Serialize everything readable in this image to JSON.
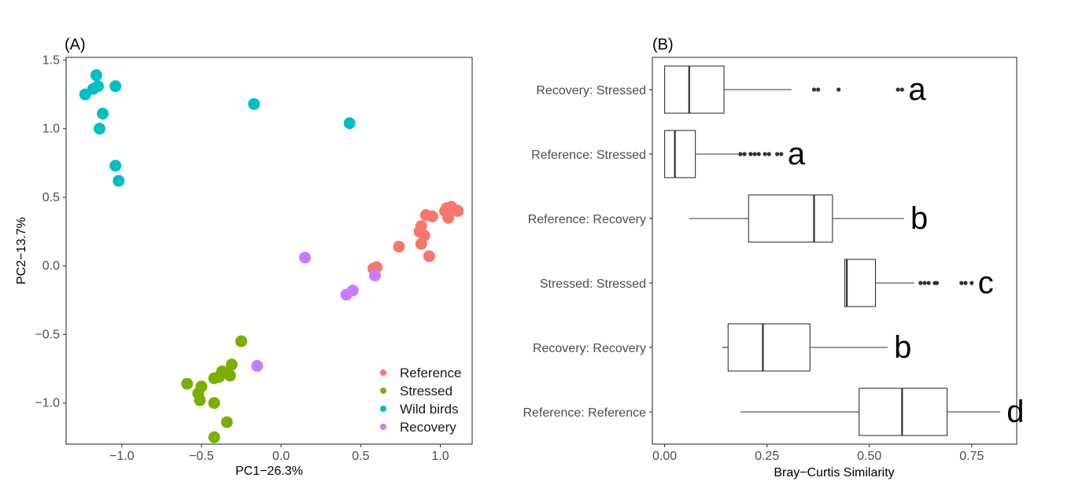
{
  "panelA": {
    "tag": "(A)",
    "xlabel": "PC1−26.3%",
    "ylabel": "PC2−13.7%",
    "xticks": [
      "−1.0",
      "−0.5",
      "0.0",
      "0.5",
      "1.0"
    ],
    "yticks": [
      "−1.0",
      "−0.5",
      "0.0",
      "0.5",
      "1.0",
      "1.5"
    ],
    "legend": [
      {
        "label": "Reference",
        "color": "#f8766d"
      },
      {
        "label": "Stressed",
        "color": "#7cae00"
      },
      {
        "label": "Wild birds",
        "color": "#00bfc4"
      },
      {
        "label": "Recovery",
        "color": "#c77cff"
      }
    ]
  },
  "panelB": {
    "tag": "(B)",
    "xlabel": "Bray−Curtis Similarity",
    "xticks": [
      "0.00",
      "0.25",
      "0.50",
      "0.75"
    ],
    "categories": [
      "Recovery: Stressed",
      "Reference: Stressed",
      "Reference: Recovery",
      "Stressed: Stressed",
      "Recovery: Recovery",
      "Reference: Reference"
    ],
    "letters": [
      "a",
      "a",
      "b",
      "c",
      "b",
      "d"
    ]
  },
  "chart_data": [
    {
      "type": "scatter",
      "xlim": [
        -1.35,
        1.2
      ],
      "ylim": [
        -1.3,
        1.52
      ],
      "grid": false,
      "legend_position": "bottom-right",
      "series": [
        {
          "name": "Reference",
          "color": "#f8766d",
          "points": [
            [
              0.58,
              -0.02
            ],
            [
              0.6,
              -0.01
            ],
            [
              0.74,
              0.14
            ],
            [
              0.88,
              0.16
            ],
            [
              0.9,
              0.22
            ],
            [
              0.87,
              0.25
            ],
            [
              0.88,
              0.29
            ],
            [
              0.93,
              0.07
            ],
            [
              0.91,
              0.37
            ],
            [
              0.95,
              0.36
            ],
            [
              1.03,
              0.4
            ],
            [
              1.04,
              0.42
            ],
            [
              1.07,
              0.43
            ],
            [
              1.11,
              0.4
            ],
            [
              1.05,
              0.35
            ]
          ]
        },
        {
          "name": "Stressed",
          "color": "#7cae00",
          "points": [
            [
              -0.25,
              -0.55
            ],
            [
              -0.31,
              -0.72
            ],
            [
              -0.32,
              -0.8
            ],
            [
              -0.35,
              -0.78
            ],
            [
              -0.37,
              -0.77
            ],
            [
              -0.39,
              -0.81
            ],
            [
              -0.42,
              -0.82
            ],
            [
              -0.59,
              -0.86
            ],
            [
              -0.5,
              -0.88
            ],
            [
              -0.52,
              -0.93
            ],
            [
              -0.51,
              -0.98
            ],
            [
              -0.42,
              -1.0
            ],
            [
              -0.34,
              -1.14
            ],
            [
              -0.42,
              -1.25
            ]
          ]
        },
        {
          "name": "Wild birds",
          "color": "#00bfc4",
          "points": [
            [
              -1.16,
              1.39
            ],
            [
              -1.04,
              1.31
            ],
            [
              -1.15,
              1.31
            ],
            [
              -1.18,
              1.29
            ],
            [
              -1.23,
              1.25
            ],
            [
              -1.12,
              1.11
            ],
            [
              -1.14,
              1.0
            ],
            [
              -1.04,
              0.73
            ],
            [
              -1.02,
              0.62
            ],
            [
              -0.17,
              1.18
            ],
            [
              0.43,
              1.04
            ]
          ]
        },
        {
          "name": "Recovery",
          "color": "#c77cff",
          "points": [
            [
              0.15,
              0.06
            ],
            [
              0.45,
              -0.18
            ],
            [
              0.41,
              -0.21
            ],
            [
              0.59,
              -0.07
            ],
            [
              -0.15,
              -0.73
            ]
          ]
        }
      ]
    },
    {
      "type": "box",
      "orientation": "horizontal",
      "xlim": [
        -0.03,
        0.86
      ],
      "grid": false,
      "categories": [
        "Recovery: Stressed",
        "Reference: Stressed",
        "Reference: Recovery",
        "Stressed: Stressed",
        "Recovery: Recovery",
        "Reference: Reference"
      ],
      "boxes": [
        {
          "whisker_low": 0.0,
          "q1": 0.0,
          "median": 0.06,
          "q3": 0.145,
          "whisker_high": 0.31,
          "outliers": [
            0.365,
            0.375,
            0.425,
            0.57,
            0.58
          ]
        },
        {
          "whisker_low": 0.0,
          "q1": 0.0,
          "median": 0.025,
          "q3": 0.075,
          "whisker_high": 0.18,
          "outliers": [
            0.185,
            0.195,
            0.21,
            0.22,
            0.23,
            0.245,
            0.255,
            0.275,
            0.285
          ]
        },
        {
          "whisker_low": 0.06,
          "q1": 0.205,
          "median": 0.365,
          "q3": 0.41,
          "whisker_high": 0.585,
          "outliers": []
        },
        {
          "whisker_low": 0.44,
          "q1": 0.44,
          "median": 0.445,
          "q3": 0.515,
          "whisker_high": 0.61,
          "outliers": [
            0.625,
            0.635,
            0.645,
            0.66,
            0.665,
            0.725,
            0.735,
            0.75
          ]
        },
        {
          "whisker_low": 0.14,
          "q1": 0.155,
          "median": 0.24,
          "q3": 0.355,
          "whisker_high": 0.545,
          "outliers": []
        },
        {
          "whisker_low": 0.185,
          "q1": 0.475,
          "median": 0.58,
          "q3": 0.69,
          "whisker_high": 0.82,
          "outliers": []
        }
      ]
    }
  ]
}
